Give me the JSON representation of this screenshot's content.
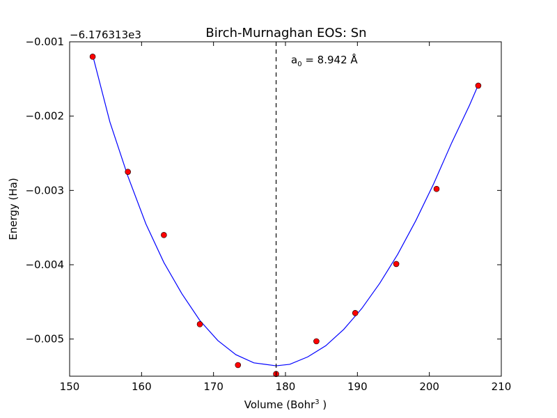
{
  "chart_data": {
    "type": "scatter",
    "title": "Birch-Murnaghan EOS: Sn",
    "xlabel_main": "Volume (Bohr",
    "xlabel_sup": "3",
    "xlabel_end": " )",
    "ylabel": "Energy (Ha)",
    "offset_label": "−6.176313e3",
    "xlim": [
      150,
      210
    ],
    "ylim": [
      -0.0055,
      -0.001
    ],
    "xticks": [
      150,
      160,
      170,
      180,
      190,
      200,
      210
    ],
    "yticks": [
      -0.001,
      -0.002,
      -0.003,
      -0.004,
      -0.005
    ],
    "ytick_labels": [
      "−0.001",
      "−0.002",
      "−0.003",
      "−0.004",
      "−0.005"
    ],
    "grid": false,
    "series": [
      {
        "kind": "points",
        "color": "#ff0000",
        "edge_color": "#000000",
        "x": [
          153.2,
          158.1,
          163.1,
          168.1,
          173.4,
          178.7,
          184.3,
          189.7,
          195.4,
          201.0,
          206.8
        ],
        "y": [
          -0.0012,
          -0.00275,
          -0.0036,
          -0.0048,
          -0.00535,
          -0.00547,
          -0.00503,
          -0.00465,
          -0.00399,
          -0.00298,
          -0.00159
        ]
      },
      {
        "kind": "fit",
        "color": "#0000ff",
        "x": [
          153.2,
          155.6,
          158.1,
          160.6,
          163.1,
          165.6,
          168.1,
          170.6,
          173.1,
          175.6,
          178.7,
          180.6,
          183.1,
          185.6,
          188.1,
          190.6,
          193.1,
          195.6,
          198.1,
          200.6,
          203.1,
          205.6,
          206.8
        ],
        "y": [
          -0.00118,
          -0.00208,
          -0.00281,
          -0.00345,
          -0.00397,
          -0.00439,
          -0.00475,
          -0.00502,
          -0.00521,
          -0.00532,
          -0.00536,
          -0.00534,
          -0.00524,
          -0.00509,
          -0.00487,
          -0.00459,
          -0.00425,
          -0.00386,
          -0.00341,
          -0.00291,
          -0.00236,
          -0.00185,
          -0.00158
        ]
      }
    ],
    "vline": {
      "x": 178.7,
      "style": "dashed",
      "color": "#000000"
    },
    "annotation": {
      "prefix": "a",
      "sub": "0",
      "value": " = 8.942 Å"
    }
  }
}
